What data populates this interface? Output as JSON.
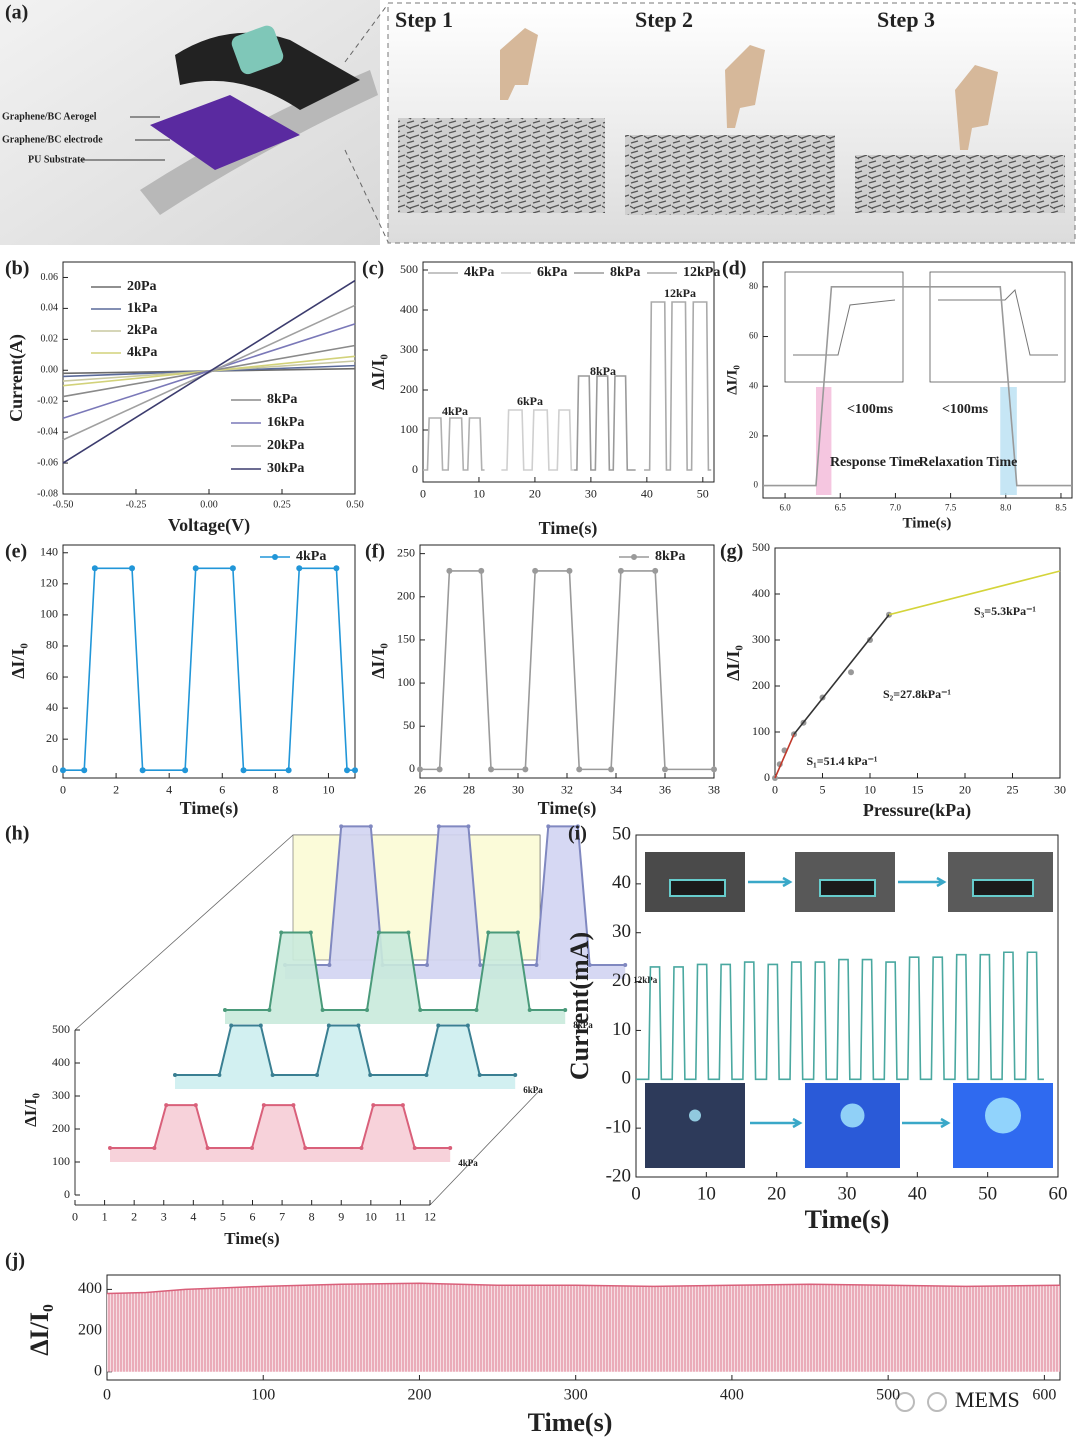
{
  "figure_a": {
    "panel": "(a)",
    "layers": [
      "Graphene/BC Aerogel",
      "Graphene/BC electrode",
      "PU Substrate"
    ],
    "steps": [
      "Step 1",
      "Step 2",
      "Step 3"
    ]
  },
  "watermark": "MEMS",
  "chart_data": [
    {
      "type": "line",
      "panel": "(b)",
      "xlabel": "Voltage(V)",
      "ylabel": "Current(A)",
      "legend": "split",
      "xlim": [
        -0.5,
        0.5
      ],
      "ylim": [
        -0.08,
        0.07
      ],
      "xticks": [
        {
          "value": -0.5,
          "label": "-0.50"
        },
        -0.25,
        {
          "value": 0,
          "label": "0.00"
        },
        0.25,
        {
          "value": 0.5,
          "label": "0.50"
        }
      ],
      "yticks": [
        -0.08,
        -0.06,
        -0.04,
        -0.02,
        {
          "value": 0,
          "label": "0.00"
        },
        0.02,
        0.04,
        0.06
      ],
      "series": [
        {
          "name": "20Pa",
          "color": "#6b6b6b",
          "x": [
            -0.5,
            0.5
          ],
          "values": [
            -0.002,
            0.001
          ]
        },
        {
          "name": "1kPa",
          "color": "#5a6a9a",
          "x": [
            -0.5,
            0.5
          ],
          "values": [
            -0.004,
            0.003
          ]
        },
        {
          "name": "2kPa",
          "color": "#c8c8a0",
          "x": [
            -0.5,
            0.5
          ],
          "values": [
            -0.007,
            0.006
          ]
        },
        {
          "name": "4kPa",
          "color": "#d2d27a",
          "x": [
            -0.5,
            0.5
          ],
          "values": [
            -0.01,
            0.009
          ]
        },
        {
          "name": "8kPa",
          "color": "#8a8a8a",
          "x": [
            -0.5,
            0.5
          ],
          "values": [
            -0.017,
            0.016
          ]
        },
        {
          "name": "16kPa",
          "color": "#7a78b8",
          "x": [
            -0.5,
            0.5
          ],
          "values": [
            -0.031,
            0.03
          ]
        },
        {
          "name": "20kPa",
          "color": "#a0a0a0",
          "x": [
            -0.5,
            0.5
          ],
          "values": [
            -0.045,
            0.042
          ]
        },
        {
          "name": "30kPa",
          "color": "#3c3c6e",
          "x": [
            -0.5,
            0.5
          ],
          "values": [
            -0.06,
            0.058
          ]
        }
      ]
    },
    {
      "type": "line",
      "panel": "(c)",
      "xlabel": "Time(s)",
      "ylabel": "ΔI/I₀",
      "legend": "top",
      "xlim": [
        0,
        52
      ],
      "ylim": [
        -30,
        520
      ],
      "xticks": [
        0,
        10,
        20,
        30,
        40,
        50
      ],
      "yticks": [
        0,
        100,
        200,
        300,
        400,
        500
      ],
      "annotations": [
        {
          "text": "4kPa"
        },
        {
          "text": "6kPa"
        },
        {
          "text": "8kPa"
        },
        {
          "text": "12kPa"
        }
      ],
      "series": [
        {
          "name": "4kPa",
          "color": "#b0b0b0",
          "x": [
            0,
            0.8,
            1.1,
            3.2,
            3.5,
            4.5,
            4.8,
            6.9,
            7.2,
            8,
            8.3,
            10.2,
            10.5,
            11
          ],
          "values": [
            0,
            0,
            130,
            130,
            0,
            0,
            130,
            130,
            0,
            0,
            130,
            130,
            0,
            0
          ]
        },
        {
          "name": "6kPa",
          "color": "#cfcfcf",
          "x": [
            14,
            15,
            15.3,
            17.7,
            18,
            19.5,
            19.8,
            22.2,
            22.5,
            24,
            24.3,
            26.2,
            26.5,
            27
          ],
          "values": [
            0,
            0,
            150,
            150,
            0,
            0,
            150,
            150,
            0,
            0,
            150,
            150,
            0,
            0
          ]
        },
        {
          "name": "8kPa",
          "color": "#9a9a9a",
          "x": [
            27,
            27.5,
            27.8,
            29.7,
            30,
            30.8,
            31.1,
            33,
            33.3,
            34,
            34.3,
            36.2,
            36.5,
            38
          ],
          "values": [
            0,
            0,
            235,
            235,
            0,
            0,
            235,
            235,
            0,
            0,
            235,
            235,
            0,
            0
          ]
        },
        {
          "name": "12kPa",
          "color": "#aaaaaa",
          "x": [
            39.5,
            40.5,
            40.8,
            43.2,
            43.5,
            44.2,
            44.5,
            46.9,
            47.2,
            48,
            48.3,
            50.7,
            51,
            51.5
          ],
          "values": [
            0,
            0,
            420,
            420,
            0,
            0,
            420,
            420,
            0,
            0,
            420,
            420,
            0,
            0
          ]
        }
      ]
    },
    {
      "type": "line",
      "panel": "(d)",
      "xlabel": "Time(s)",
      "ylabel": "ΔI/I₀",
      "highlight": true,
      "xlim": [
        5.8,
        8.6
      ],
      "ylim": [
        -5,
        90
      ],
      "xticks": [
        {
          "value": 6,
          "label": "6.0"
        },
        6.5,
        {
          "value": 7,
          "label": "7.0"
        },
        7.5,
        {
          "value": 8,
          "label": "8.0"
        },
        8.5
      ],
      "yticks": [
        0,
        20,
        40,
        60,
        80
      ],
      "annotations": [
        {
          "text": "<100ms"
        },
        {
          "text": "<100ms"
        },
        {
          "text": "Response Time"
        },
        {
          "text": "Relaxation Time"
        }
      ],
      "series": [
        {
          "color": "#9a9a9a",
          "x": [
            5.8,
            6.28,
            6.42,
            7.95,
            8.1,
            8.6
          ],
          "values": [
            0,
            0,
            80,
            80,
            0,
            0
          ]
        }
      ]
    },
    {
      "type": "line",
      "panel": "(e)",
      "xlabel": "Time(s)",
      "ylabel": "ΔI/I₀",
      "legend": "upper right",
      "xlim": [
        0,
        11
      ],
      "ylim": [
        -5,
        145
      ],
      "xticks": [
        0,
        2,
        4,
        6,
        8,
        10
      ],
      "yticks": [
        0,
        20,
        40,
        60,
        80,
        100,
        120,
        140
      ],
      "series": [
        {
          "name": "4kPa",
          "color": "#2196d8",
          "mode": "lines+markers",
          "x": [
            0,
            0.8,
            1.2,
            2.6,
            3.0,
            4.6,
            5.0,
            6.4,
            6.8,
            8.5,
            8.9,
            10.3,
            10.7,
            11
          ],
          "values": [
            0,
            0,
            130,
            130,
            0,
            0,
            130,
            130,
            0,
            0,
            130,
            130,
            0,
            0
          ]
        }
      ]
    },
    {
      "type": "line",
      "panel": "(f)",
      "xlabel": "Time(s)",
      "ylabel": "ΔI/I₀",
      "legend": "upper right",
      "xlim": [
        26,
        38
      ],
      "ylim": [
        -10,
        260
      ],
      "xticks": [
        26,
        28,
        30,
        32,
        34,
        36,
        38
      ],
      "yticks": [
        0,
        50,
        100,
        150,
        200,
        250
      ],
      "series": [
        {
          "name": "8kPa",
          "color": "#9a9a9a",
          "mode": "lines+markers",
          "x": [
            26,
            26.8,
            27.2,
            28.5,
            28.9,
            30.3,
            30.7,
            32.1,
            32.5,
            33.8,
            34.2,
            35.6,
            36.0,
            38
          ],
          "values": [
            0,
            0,
            230,
            230,
            0,
            0,
            230,
            230,
            0,
            0,
            230,
            230,
            0,
            0
          ]
        }
      ]
    },
    {
      "type": "line",
      "panel": "(g)",
      "xlabel": "Pressure(kPa)",
      "ylabel": "ΔI/I₀",
      "xlim": [
        0,
        30
      ],
      "ylim": [
        0,
        500
      ],
      "xticks": [
        0,
        5,
        10,
        15,
        20,
        25,
        30
      ],
      "yticks": [
        0,
        100,
        200,
        300,
        400,
        500
      ],
      "annotations": [
        {
          "text": "S₁=51.4 kPa⁻¹",
          "color": "#b03030"
        },
        {
          "text": "S₂=27.8kPa⁻¹",
          "color": "#333333"
        },
        {
          "text": "S₃=5.3kPa⁻¹",
          "color": "#d4d43a"
        }
      ],
      "series": [
        {
          "color": "#999999",
          "mode": "markers",
          "x": [
            0,
            0.5,
            1,
            2,
            3,
            5,
            8,
            10,
            12
          ],
          "values": [
            0,
            30,
            60,
            95,
            120,
            175,
            230,
            300,
            355
          ]
        },
        {
          "color": "#c0392b",
          "x": [
            0,
            2
          ],
          "values": [
            0,
            95
          ]
        },
        {
          "color": "#333333",
          "x": [
            2,
            12
          ],
          "values": [
            95,
            355
          ]
        },
        {
          "color": "#d4d43a",
          "x": [
            12,
            30
          ],
          "values": [
            355,
            450
          ]
        }
      ]
    },
    {
      "type": "waterfall",
      "panel": "(h)",
      "xlabel": "Time(s)",
      "ylabel": "ΔI/I₀",
      "xlim": [
        0,
        12
      ],
      "ylim": [
        0,
        500
      ],
      "xticks": [
        0,
        1,
        2,
        3,
        4,
        5,
        6,
        7,
        8,
        9,
        10,
        11,
        12
      ],
      "yticks": [
        0,
        100,
        200,
        300,
        400,
        500
      ],
      "series": [
        {
          "name": "4kPa",
          "color": "#d9607a",
          "fill": "#f6cdd6",
          "x": [
            0,
            1.5,
            1.9,
            2.9,
            3.3,
            4.8,
            5.2,
            6.2,
            6.6,
            8.5,
            8.9,
            9.9,
            10.3,
            11.5
          ],
          "values": [
            0,
            0,
            130,
            130,
            0,
            0,
            130,
            130,
            0,
            0,
            130,
            130,
            0,
            0
          ]
        },
        {
          "name": "6kPa",
          "color": "#3a7f92",
          "fill": "#cdeef0",
          "x": [
            0,
            1.5,
            1.9,
            2.9,
            3.3,
            4.8,
            5.2,
            6.2,
            6.6,
            8.5,
            8.9,
            9.9,
            10.3,
            11.5
          ],
          "values": [
            0,
            0,
            150,
            150,
            0,
            0,
            150,
            150,
            0,
            0,
            150,
            150,
            0,
            0
          ]
        },
        {
          "name": "8kPa",
          "color": "#4a9a7a",
          "fill": "#c9eadc",
          "x": [
            0,
            1.5,
            1.9,
            2.9,
            3.3,
            4.8,
            5.2,
            6.2,
            6.6,
            8.5,
            8.9,
            9.9,
            10.3,
            11.5
          ],
          "values": [
            0,
            0,
            235,
            235,
            0,
            0,
            235,
            235,
            0,
            0,
            235,
            235,
            0,
            0
          ]
        },
        {
          "name": "12kPa",
          "color": "#8088c0",
          "fill": "#d2d4f2",
          "x": [
            0,
            1.5,
            1.9,
            2.9,
            3.3,
            4.8,
            5.2,
            6.2,
            6.6,
            8.5,
            8.9,
            9.9,
            10.3,
            11.5
          ],
          "values": [
            0,
            0,
            420,
            420,
            0,
            0,
            420,
            420,
            0,
            0,
            420,
            420,
            0,
            0
          ]
        }
      ]
    },
    {
      "type": "line",
      "panel": "(i)",
      "xlabel": "Time(s)",
      "ylabel": "Current(mA)",
      "xlim": [
        0,
        60
      ],
      "ylim": [
        -20,
        50
      ],
      "xticks": [
        0,
        10,
        20,
        30,
        40,
        50,
        60
      ],
      "yticks": [
        -20,
        -10,
        0,
        10,
        20,
        30,
        40,
        50
      ],
      "series": [
        {
          "color": "#4aa8a0",
          "x": [
            0,
            1.8,
            2.05,
            3.35,
            3.6,
            5.15,
            5.4,
            6.7,
            6.95,
            8.5,
            8.75,
            10.05,
            10.3,
            11.85,
            12.1,
            13.4,
            13.65,
            15.2,
            15.45,
            16.75,
            17,
            18.55,
            18.8,
            20.1,
            20.35,
            21.9,
            22.15,
            23.45,
            23.7,
            25.25,
            25.5,
            26.8,
            27.05,
            28.6,
            28.85,
            30.15,
            30.4,
            31.95,
            32.2,
            33.5,
            33.75,
            35.3,
            35.55,
            36.85,
            37.1,
            38.65,
            38.9,
            40.2,
            40.45,
            42,
            42.25,
            43.55,
            43.8,
            45.35,
            45.6,
            46.9,
            47.15,
            48.7,
            48.95,
            50.25,
            50.5,
            52.05,
            52.3,
            53.6,
            53.85,
            55.4,
            55.65,
            56.95,
            57.2,
            58
          ],
          "values": [
            0,
            0,
            23,
            23,
            0,
            0,
            23,
            23,
            0,
            0,
            23.5,
            23.5,
            0,
            0,
            23.5,
            23.5,
            0,
            0,
            24,
            24,
            0,
            0,
            23.5,
            23.5,
            0,
            0,
            24,
            24,
            0,
            0,
            24,
            24,
            0,
            0,
            24.5,
            24.5,
            0,
            0,
            24.5,
            24.5,
            0,
            0,
            24,
            24,
            0,
            0,
            25,
            25,
            0,
            0,
            25,
            25,
            0,
            0,
            25.5,
            25.5,
            0,
            0,
            25.5,
            25.5,
            0,
            0,
            26,
            26,
            0,
            0,
            26,
            26,
            0,
            0
          ]
        }
      ]
    },
    {
      "type": "area",
      "panel": "(j)",
      "xlabel": "Time(s)",
      "ylabel": "ΔI/I₀",
      "xlim": [
        0,
        610
      ],
      "ylim": [
        -40,
        470
      ],
      "xticks": [
        0,
        100,
        200,
        300,
        400,
        500,
        600
      ],
      "yticks": [
        0,
        200,
        400
      ],
      "series": [
        {
          "color": "#d9607a",
          "fill": "#f3c6d0",
          "x": [
            0,
            25,
            50,
            100,
            150,
            200,
            250,
            300,
            350,
            400,
            450,
            500,
            550,
            610
          ],
          "values": [
            380,
            385,
            400,
            415,
            425,
            430,
            420,
            420,
            415,
            420,
            425,
            420,
            415,
            420
          ]
        }
      ]
    }
  ]
}
